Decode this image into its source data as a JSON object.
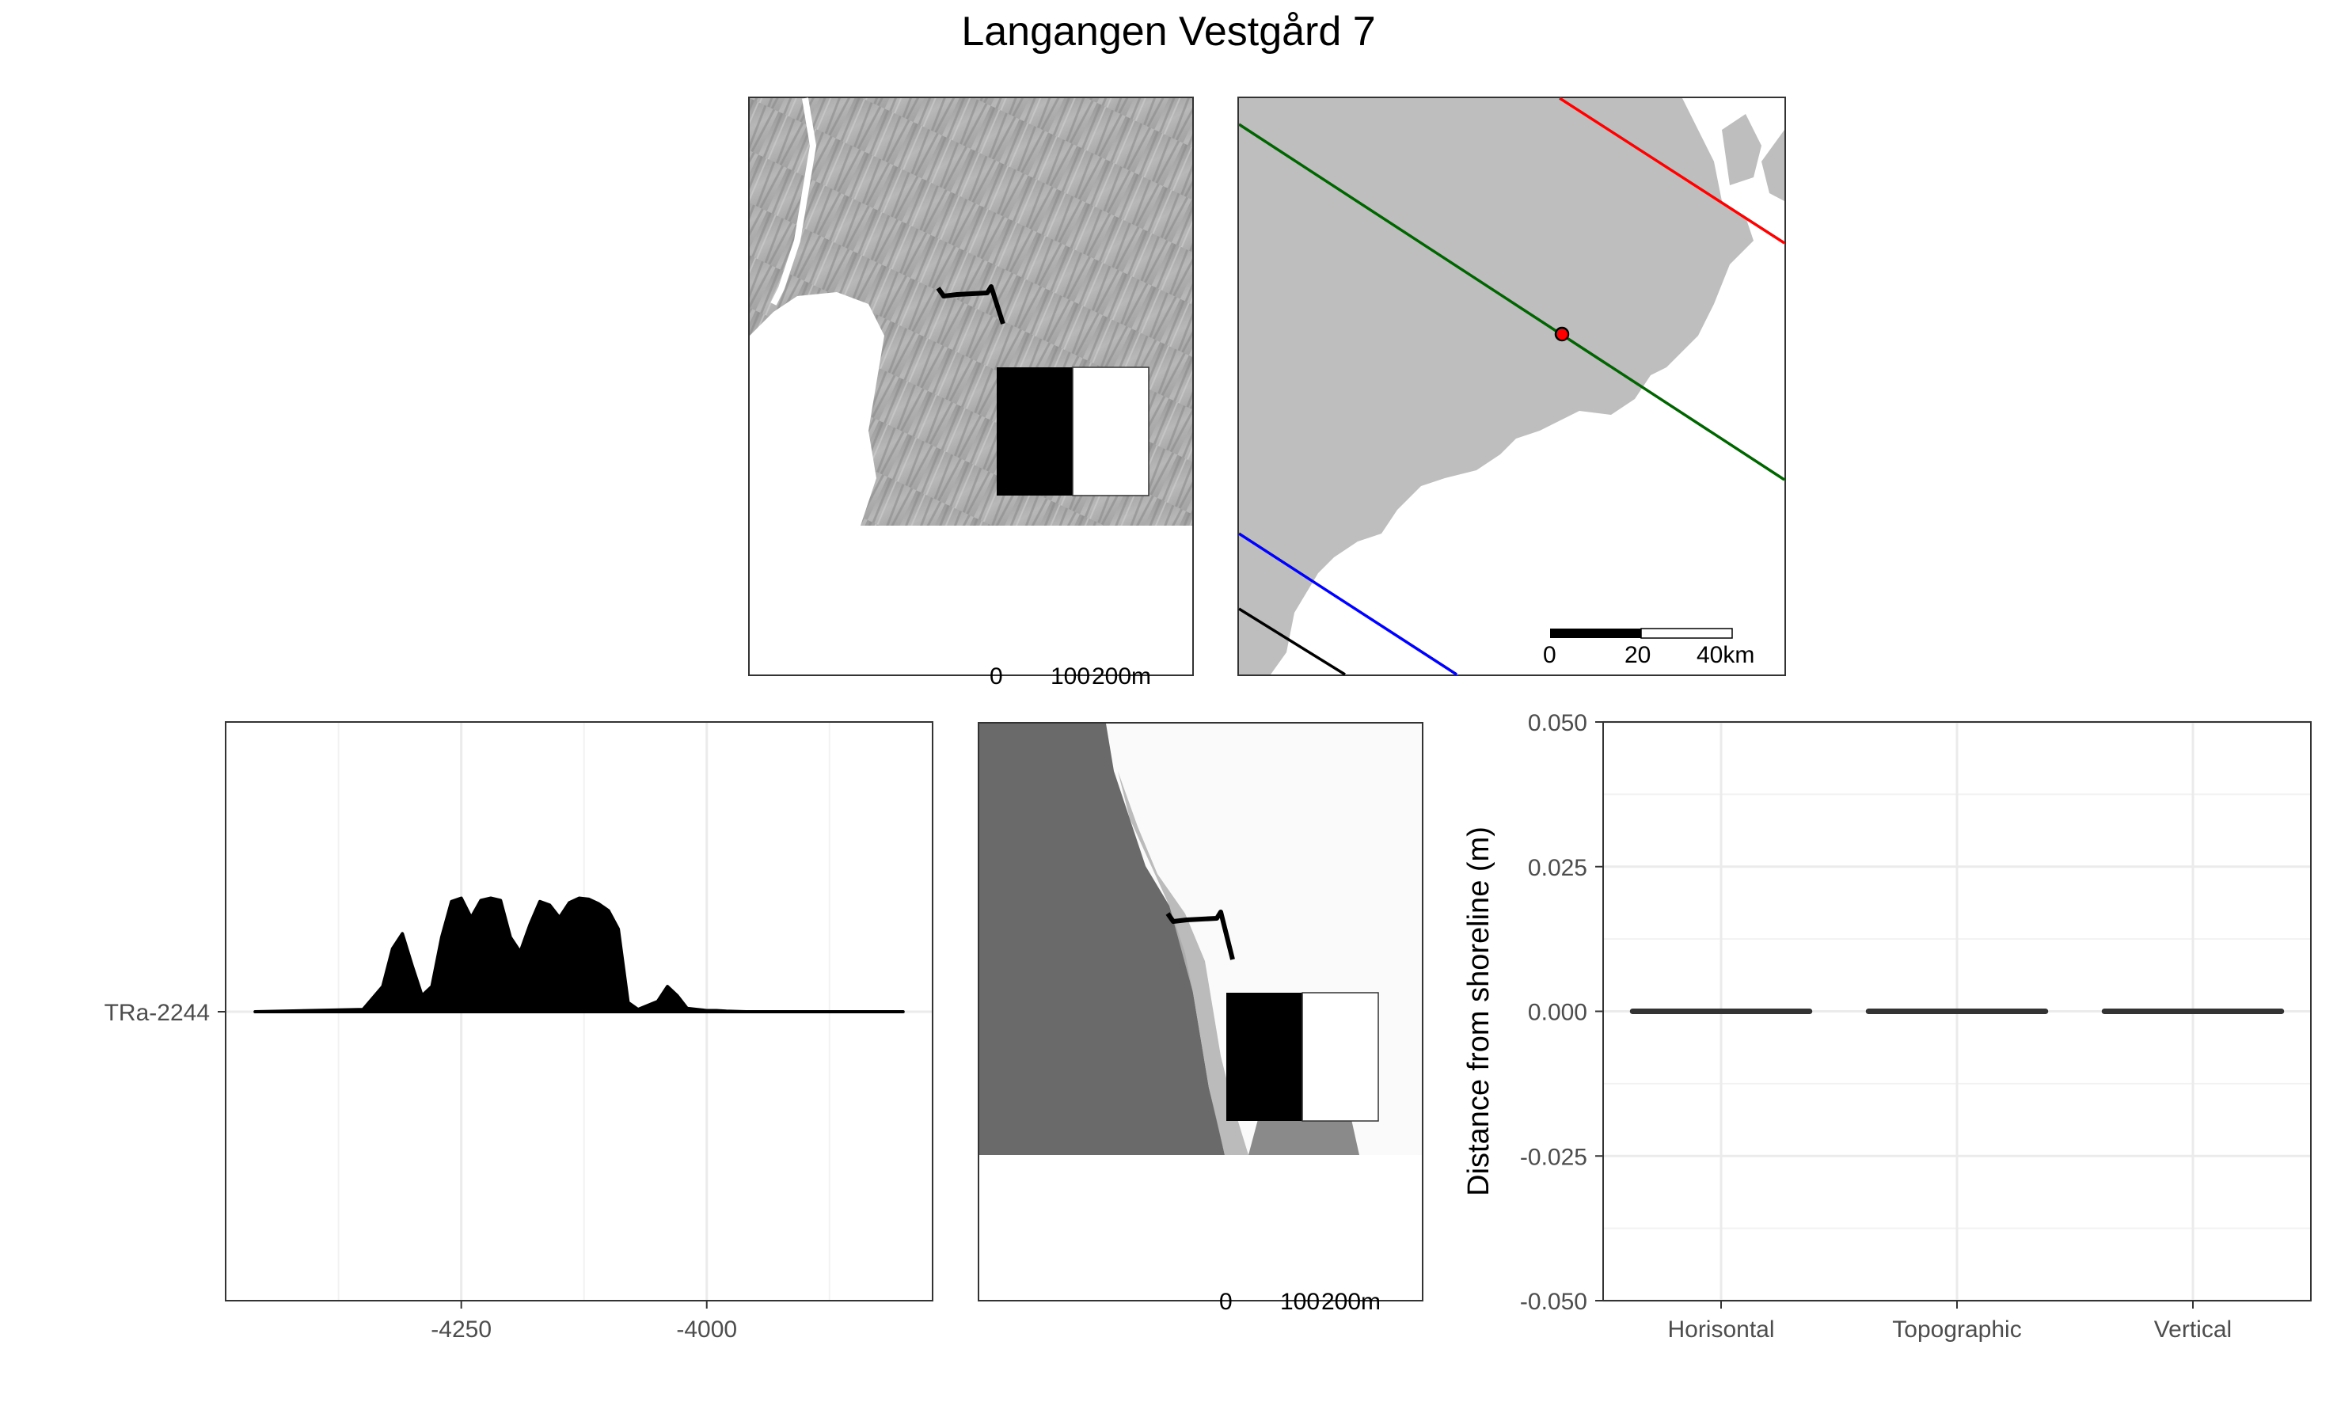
{
  "title": "Langangen Vestgård 7",
  "maps": {
    "scalebar_top_left": {
      "label_0": "0",
      "label_1": "100",
      "label_2": "200m"
    },
    "scalebar_top_right": {
      "label_0": "0",
      "label_1": "20",
      "label_2": "40km"
    },
    "scalebar_bottom_middle": {
      "label_0": "0",
      "label_1": "100",
      "label_2": "200m"
    },
    "line_colors": {
      "red": "#ff0000",
      "green": "#006400",
      "blue": "#0000ff",
      "black": "#000000"
    },
    "site_point_color": "#ff0000",
    "land_color": "#bebebe"
  },
  "chart_data": [
    {
      "type": "area",
      "x_ticks": [
        -4250,
        -4000
      ],
      "x_tick_labels": [
        "-4250",
        "-4000"
      ],
      "xlim": [
        -4490,
        -3770
      ],
      "y_categories": [
        "TRa-2244"
      ],
      "series": [
        {
          "x": [
            -4460,
            -4350,
            -4330,
            -4320,
            -4310,
            -4300,
            -4290,
            -4280,
            -4270,
            -4260,
            -4250,
            -4240,
            -4230,
            -4220,
            -4210,
            -4200,
            -4190,
            -4180,
            -4170,
            -4160,
            -4150,
            -4140,
            -4130,
            -4120,
            -4110,
            -4100,
            -4090,
            -4080,
            -4070,
            -4050,
            -4040,
            -4030,
            -4020,
            -4010,
            -4000,
            -3990,
            -3980,
            -3960,
            -3800
          ],
          "y": [
            0,
            0.02,
            0.22,
            0.55,
            0.68,
            0.4,
            0.14,
            0.22,
            0.65,
            0.96,
            0.99,
            0.82,
            0.97,
            0.99,
            0.97,
            0.65,
            0.52,
            0.76,
            0.96,
            0.93,
            0.82,
            0.95,
            0.99,
            0.98,
            0.94,
            0.88,
            0.72,
            0.08,
            0.02,
            0.09,
            0.22,
            0.14,
            0.03,
            0.02,
            0.01,
            0.01,
            0.005,
            0,
            0
          ]
        }
      ]
    },
    {
      "type": "bar",
      "categories": [
        "Horisontal",
        "Topographic",
        "Vertical"
      ],
      "values": [
        0,
        0,
        0
      ],
      "ylabel": "Distance from shoreline (m)",
      "ylim": [
        -0.05,
        0.05
      ],
      "y_ticks": [
        0.05,
        0.025,
        0,
        -0.025,
        -0.05
      ],
      "y_tick_labels": [
        "0.050",
        "0.025",
        "0.000",
        "-0.025",
        "-0.050"
      ]
    }
  ]
}
